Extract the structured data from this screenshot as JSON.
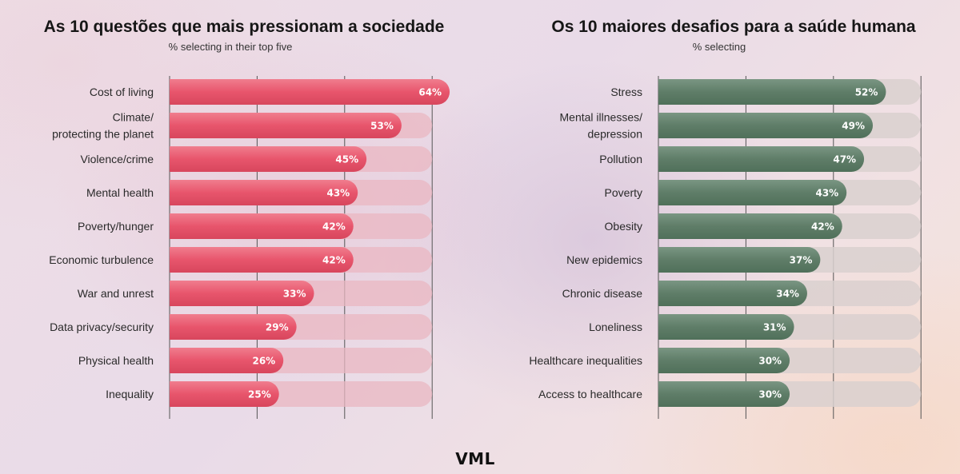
{
  "logo_text": "VML",
  "chart_data": [
    {
      "type": "bar",
      "orientation": "horizontal",
      "title": "As 10 questões que mais pressionam a sociedade",
      "subtitle": "% selecting in their top five",
      "categories": [
        "Cost of living",
        "Climate/\nprotecting the planet",
        "Violence/crime",
        "Mental health",
        "Poverty/hunger",
        "Economic turbulence",
        "War and unrest",
        "Data privacy/security",
        "Physical health",
        "Inequality"
      ],
      "values": [
        64,
        53,
        45,
        43,
        42,
        42,
        33,
        29,
        26,
        25
      ],
      "value_labels": [
        "64%",
        "53%",
        "45%",
        "43%",
        "42%",
        "42%",
        "33%",
        "29%",
        "26%",
        "25%"
      ],
      "xlim": [
        0,
        60
      ],
      "bar_color": "#e8556c",
      "track_color": "#e9b7c2",
      "grid": true
    },
    {
      "type": "bar",
      "orientation": "horizontal",
      "title": "Os 10 maiores desafios para a saúde humana",
      "subtitle": "% selecting",
      "categories": [
        "Stress",
        "Mental illnesses/\ndepression",
        "Pollution",
        "Poverty",
        "Obesity",
        "New epidemics",
        "Chronic disease",
        "Loneliness",
        "Healthcare inequalities",
        "Access to healthcare"
      ],
      "values": [
        52,
        49,
        47,
        43,
        42,
        37,
        34,
        31,
        30,
        30
      ],
      "value_labels": [
        "52%",
        "49%",
        "47%",
        "43%",
        "42%",
        "37%",
        "34%",
        "31%",
        "30%",
        "30%"
      ],
      "xlim": [
        0,
        60
      ],
      "bar_color": "#5f7d68",
      "track_color": "#d9d0cf",
      "grid": true
    }
  ]
}
